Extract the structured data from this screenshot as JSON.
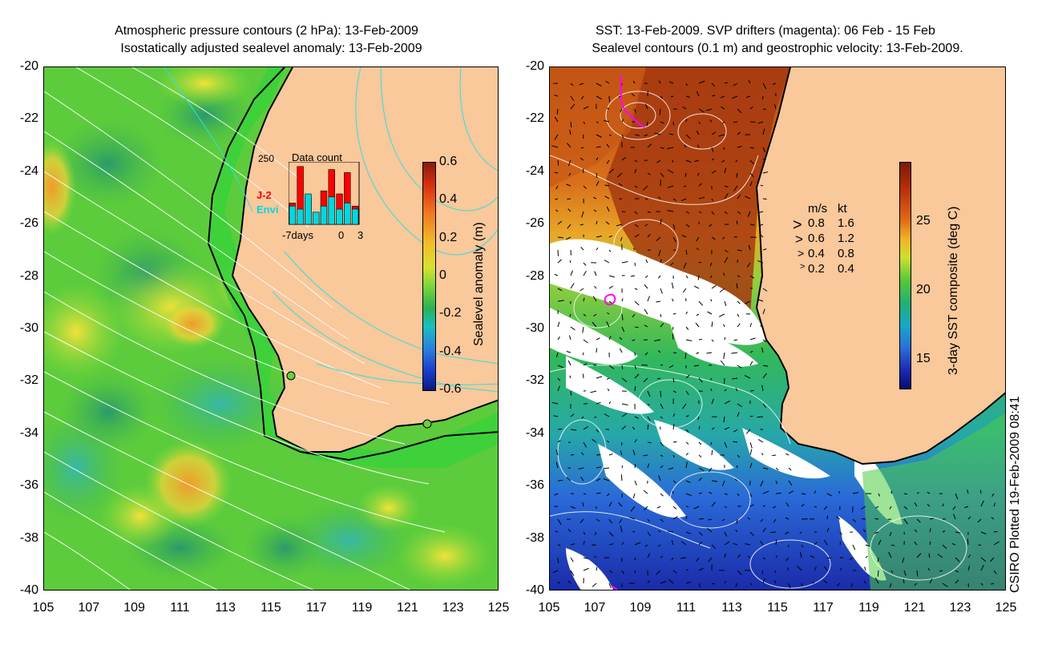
{
  "left_panel": {
    "title_line1": "Atmospheric pressure contours (2 hPa): 13-Feb-2009",
    "title_line2": "Isostatically adjusted sealevel anomaly: 13-Feb-2009",
    "colorbar_label": "Sealevel anomaly (m)",
    "colorbar_ticks": [
      "0.6",
      "0.4",
      "0.2",
      "0",
      "-0.2",
      "-0.4",
      "-0.6"
    ],
    "inset": {
      "title": "Data count",
      "max_label": "250",
      "series1": "J-2",
      "series2": "Envi",
      "x_left": "-7days",
      "x_mid": "0",
      "x_right": "3",
      "series1_color": "#ff0000",
      "series2_color": "#00d8e0",
      "series1_values": [
        0.35,
        0.95,
        0.45,
        0.2,
        0.55,
        0.9,
        0.5,
        0.85,
        0.3
      ],
      "series2_values": [
        0.3,
        0.25,
        0.5,
        0.2,
        0.3,
        0.45,
        0.25,
        0.35,
        0.25
      ]
    }
  },
  "right_panel": {
    "title_line1": "SST: 13-Feb-2009. SVP drifters (magenta): 06 Feb - 15 Feb",
    "title_line2": "Sealevel contours (0.1 m) and geostrophic velocity: 13-Feb-2009.",
    "colorbar_label": "3-day SST composite (deg C)",
    "colorbar_ticks": [
      "25",
      "20",
      "15"
    ],
    "velocity_legend": {
      "header_ms": "m/s",
      "header_kt": "kt",
      "rows": [
        {
          "ms": "0.8",
          "kt": "1.6"
        },
        {
          "ms": "0.6",
          "kt": "1.2"
        },
        {
          "ms": "0.4",
          "kt": "0.8"
        },
        {
          "ms": "0.2",
          "kt": "0.4"
        }
      ]
    }
  },
  "y_ticks": [
    "-20",
    "-22",
    "-24",
    "-26",
    "-28",
    "-30",
    "-32",
    "-34",
    "-36",
    "-38",
    "-40"
  ],
  "x_ticks": [
    "105",
    "107",
    "109",
    "111",
    "113",
    "115",
    "117",
    "119",
    "121",
    "123",
    "125"
  ],
  "credit": "CSIRO Plotted 19-Feb-2009 08:41",
  "colors": {
    "land": "#f9c89b",
    "ocean_left": "#66d23a",
    "ocean_right_warm": "#c85a10",
    "drifter": "#ff00ff"
  }
}
